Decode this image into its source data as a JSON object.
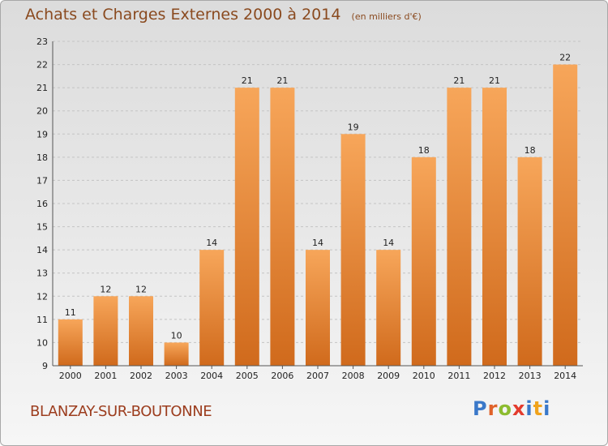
{
  "header": {
    "title": "Achats et Charges Externes 2000 à 2014",
    "unit": "(en milliers d'€)"
  },
  "footer": {
    "commune": "BLANZAY-SUR-BOUTONNE",
    "brand": "Proxiti"
  },
  "colors": {
    "bar_top": "#f7a65a",
    "bar_bottom": "#d06a1c",
    "title": "#8a4a1f",
    "commune": "#9c3d1e"
  },
  "chart_data": {
    "type": "bar",
    "title": "Achats et Charges Externes 2000 à 2014",
    "subtitle": "(en milliers d'€)",
    "xlabel": "",
    "ylabel": "",
    "categories": [
      "2000",
      "2001",
      "2002",
      "2003",
      "2004",
      "2005",
      "2006",
      "2007",
      "2008",
      "2009",
      "2010",
      "2011",
      "2012",
      "2013",
      "2014"
    ],
    "values": [
      11,
      12,
      12,
      10,
      14,
      21,
      21,
      14,
      19,
      14,
      18,
      21,
      21,
      18,
      22
    ],
    "ylim": [
      9,
      23
    ],
    "yticks": [
      9,
      10,
      11,
      12,
      13,
      14,
      15,
      16,
      17,
      18,
      19,
      20,
      21,
      22,
      23
    ],
    "grid": "horizontal dashed",
    "data_labels": true
  }
}
